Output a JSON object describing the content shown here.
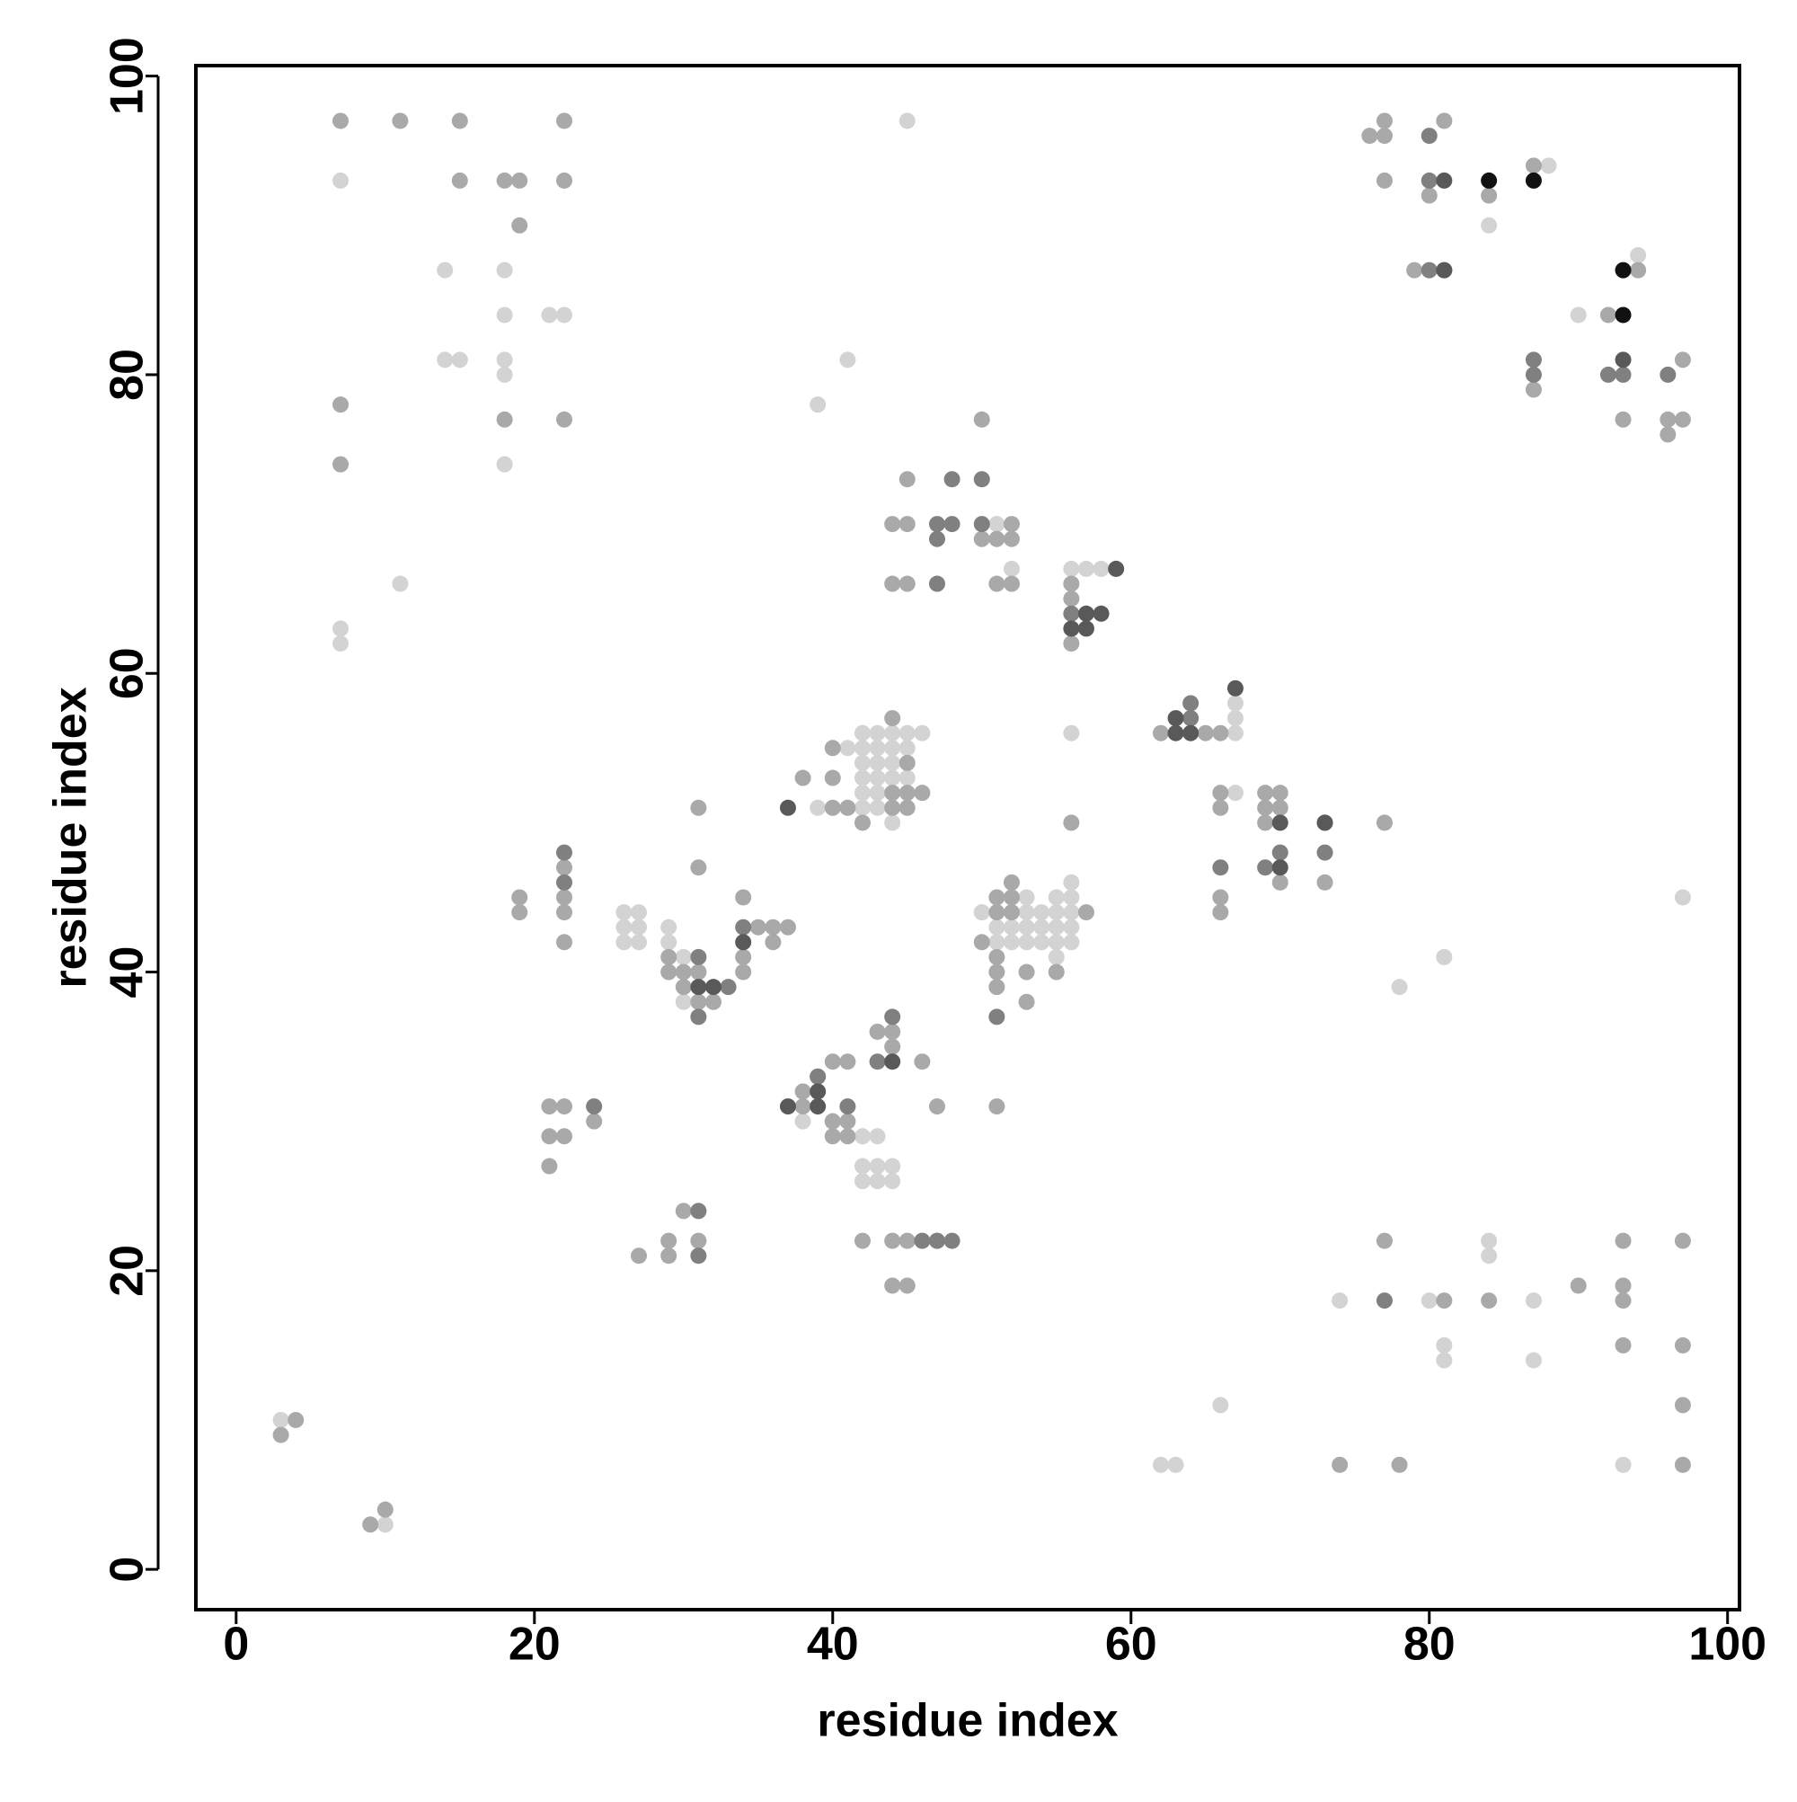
{
  "chart_data": {
    "type": "scatter",
    "xlabel": "residue index",
    "ylabel": "residue index",
    "xlim": [
      -2.7,
      100.8
    ],
    "ylim": [
      -2.7,
      100.7
    ],
    "xticks": [
      0,
      20,
      40,
      60,
      80,
      100
    ],
    "yticks": [
      0,
      20,
      40,
      60,
      80,
      100
    ],
    "grid": false,
    "series": [
      {
        "color": "#d3d3d3",
        "x": [
          7,
          14,
          18,
          18,
          21,
          22,
          14,
          15,
          18,
          18,
          18,
          11,
          7,
          7,
          45,
          41,
          39,
          88,
          84,
          94,
          90,
          51,
          52,
          56,
          57,
          58,
          67,
          67,
          67,
          67,
          70,
          56,
          41,
          42,
          43,
          44,
          45,
          46,
          42,
          43,
          44,
          45,
          42,
          43,
          44,
          42,
          43,
          44,
          45,
          42,
          43,
          39,
          42,
          43,
          44,
          56,
          50,
          53,
          55,
          56,
          50,
          53,
          54,
          55,
          56,
          51,
          52,
          53,
          54,
          55,
          56,
          51,
          52,
          53,
          54,
          55,
          56,
          55,
          97,
          81,
          78,
          26,
          27,
          26,
          27,
          26,
          27,
          29,
          29,
          30,
          30,
          38,
          42,
          43,
          42,
          43,
          44,
          42,
          43,
          44,
          84,
          84,
          74,
          80,
          87,
          81,
          81,
          87,
          66,
          62,
          63,
          93,
          3,
          10
        ],
        "values": [
          93,
          87,
          87,
          84,
          84,
          84,
          81,
          81,
          81,
          80,
          74,
          66,
          63,
          62,
          97,
          81,
          78,
          94,
          90,
          88,
          84,
          70,
          67,
          67,
          67,
          67,
          58,
          57,
          56,
          52,
          51,
          56,
          55,
          56,
          56,
          56,
          56,
          56,
          55,
          55,
          55,
          55,
          54,
          54,
          54,
          53,
          53,
          53,
          53,
          52,
          52,
          51,
          51,
          51,
          50,
          46,
          44,
          45,
          45,
          45,
          44,
          44,
          44,
          44,
          44,
          43,
          43,
          43,
          43,
          43,
          43,
          42,
          42,
          42,
          42,
          42,
          42,
          41,
          45,
          41,
          39,
          44,
          44,
          43,
          43,
          42,
          42,
          43,
          42,
          41,
          38,
          30,
          29,
          29,
          27,
          27,
          27,
          26,
          26,
          26,
          22,
          21,
          18,
          18,
          18,
          15,
          14,
          14,
          11,
          7,
          7,
          7,
          10,
          3
        ]
      },
      {
        "color": "#a9a9a9",
        "x": [
          7,
          11,
          15,
          22,
          15,
          18,
          19,
          22,
          19,
          7,
          18,
          22,
          7,
          76,
          77,
          77,
          81,
          77,
          80,
          84,
          87,
          79,
          94,
          92,
          87,
          97,
          93,
          96,
          96,
          97,
          50,
          45,
          44,
          45,
          50,
          51,
          52,
          52,
          44,
          45,
          51,
          52,
          56,
          56,
          56,
          62,
          65,
          66,
          66,
          66,
          69,
          70,
          69,
          69,
          77,
          70,
          73,
          70,
          66,
          66,
          56,
          44,
          40,
          38,
          40,
          45,
          44,
          45,
          46,
          40,
          41,
          44,
          45,
          42,
          31,
          31,
          52,
          51,
          52,
          57,
          50,
          51,
          52,
          51,
          51,
          53,
          55,
          51,
          53,
          22,
          22,
          22,
          22,
          19,
          19,
          29,
          29,
          30,
          31,
          30,
          31,
          32,
          34,
          35,
          36,
          37,
          36,
          34,
          34,
          43,
          44,
          44,
          40,
          41,
          46,
          38,
          38,
          40,
          47,
          51,
          39,
          40,
          41,
          40,
          41,
          21,
          22,
          24,
          21,
          22,
          21,
          30,
          29,
          31,
          27,
          29,
          42,
          44,
          45,
          47,
          44,
          45,
          77,
          93,
          97,
          81,
          84,
          90,
          93,
          93,
          93,
          97,
          97,
          74,
          78,
          97,
          4,
          3,
          9,
          10
        ],
        "values": [
          97,
          97,
          97,
          97,
          93,
          93,
          93,
          93,
          90,
          78,
          77,
          77,
          74,
          96,
          96,
          97,
          97,
          93,
          92,
          92,
          94,
          87,
          87,
          84,
          79,
          81,
          77,
          77,
          76,
          77,
          77,
          73,
          70,
          70,
          69,
          69,
          69,
          70,
          66,
          66,
          66,
          66,
          66,
          65,
          62,
          56,
          56,
          56,
          52,
          51,
          52,
          52,
          51,
          50,
          50,
          51,
          46,
          46,
          45,
          44,
          50,
          57,
          55,
          53,
          53,
          54,
          52,
          52,
          52,
          51,
          51,
          51,
          51,
          50,
          51,
          47,
          46,
          45,
          45,
          44,
          42,
          44,
          44,
          41,
          40,
          40,
          40,
          39,
          38,
          47,
          45,
          44,
          42,
          45,
          44,
          41,
          40,
          40,
          40,
          39,
          38,
          38,
          45,
          43,
          43,
          43,
          42,
          41,
          40,
          36,
          36,
          35,
          34,
          34,
          34,
          32,
          31,
          30,
          31,
          31,
          33,
          30,
          30,
          29,
          29,
          31,
          31,
          30,
          29,
          29,
          27,
          24,
          22,
          22,
          21,
          21,
          22,
          22,
          22,
          22,
          19,
          19,
          22,
          22,
          22,
          18,
          18,
          19,
          19,
          18,
          15,
          15,
          11,
          7,
          7,
          7,
          10,
          9,
          3,
          4
        ]
      },
      {
        "color": "#808080",
        "x": [
          80,
          80,
          80,
          81,
          87,
          87,
          92,
          93,
          96,
          48,
          50,
          47,
          48,
          47,
          50,
          47,
          64,
          64,
          56,
          73,
          70,
          73,
          66,
          69,
          51,
          22,
          22,
          31,
          33,
          31,
          44,
          43,
          34,
          39,
          41,
          47,
          24,
          31,
          31,
          46,
          48,
          77
        ],
        "values": [
          96,
          93,
          87,
          87,
          81,
          80,
          80,
          80,
          80,
          73,
          73,
          70,
          70,
          69,
          70,
          66,
          57,
          58,
          64,
          50,
          48,
          48,
          47,
          47,
          37,
          48,
          46,
          41,
          39,
          37,
          37,
          34,
          43,
          33,
          31,
          22,
          31,
          24,
          21,
          22,
          22,
          18
        ]
      },
      {
        "color": "#595959",
        "x": [
          81,
          81,
          93,
          59,
          57,
          58,
          56,
          57,
          67,
          63,
          63,
          64,
          70,
          73,
          70,
          37,
          31,
          32,
          44,
          39,
          37,
          39,
          34
        ],
        "values": [
          93,
          87,
          81,
          67,
          64,
          64,
          63,
          63,
          59,
          57,
          56,
          56,
          50,
          50,
          47,
          51,
          39,
          39,
          34,
          32,
          31,
          31,
          42
        ]
      },
      {
        "color": "#111111",
        "x": [
          84,
          87,
          93,
          93
        ],
        "values": [
          93,
          93,
          87,
          84
        ]
      }
    ]
  }
}
